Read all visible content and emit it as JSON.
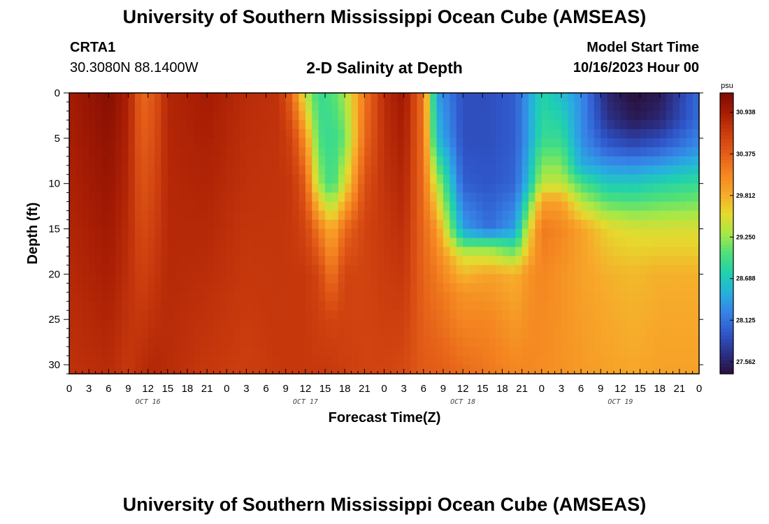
{
  "header": {
    "title": "University of Southern Mississippi Ocean Cube (AMSEAS)",
    "station": "CRTA1",
    "coords": "30.3080N  88.1400W",
    "subtitle": "2-D Salinity at Depth",
    "start_label": "Model Start Time",
    "start_value": "10/16/2023 Hour 00"
  },
  "footer": {
    "title": "University of Southern Mississippi Ocean Cube (AMSEAS)"
  },
  "chart_data": {
    "type": "heatmap",
    "title": "2-D Salinity at Depth",
    "xlabel": "Forecast Time(Z)",
    "ylabel": "Depth (ft)",
    "xlim": [
      0,
      96
    ],
    "ylim": [
      31,
      0
    ],
    "x_tick_labels": [
      "0",
      "3",
      "6",
      "9",
      "12",
      "15",
      "18",
      "21",
      "0",
      "3",
      "6",
      "9",
      "12",
      "15",
      "18",
      "21",
      "0",
      "3",
      "6",
      "9",
      "12",
      "15",
      "18",
      "21",
      "0",
      "3",
      "6",
      "9",
      "12",
      "15",
      "18",
      "21",
      "0"
    ],
    "y_ticks": [
      0,
      5,
      10,
      15,
      20,
      25,
      30
    ],
    "day_labels": [
      {
        "label": "OCT 16",
        "hour": 12
      },
      {
        "label": "OCT 17",
        "hour": 36
      },
      {
        "label": "OCT 18",
        "hour": 60
      },
      {
        "label": "OCT 19",
        "hour": 84
      }
    ],
    "colorbar": {
      "unit": "psu",
      "min": 27.4,
      "max": 31.2,
      "tick_labels": [
        "30.938",
        "30.375",
        "29.812",
        "29.250",
        "28.688",
        "28.125",
        "27.562"
      ],
      "colors": [
        "#2a0f3a",
        "#2b2f85",
        "#2f55c8",
        "#3780e6",
        "#28aee0",
        "#1fd0b0",
        "#4de07a",
        "#a8e846",
        "#e6d92e",
        "#f7a82a",
        "#f48420",
        "#e35d18",
        "#cc3d0e",
        "#a81d04",
        "#7f0c02"
      ]
    },
    "profiles": [
      {
        "hour": 0,
        "depths": [
          0,
          31
        ],
        "values": [
          30.95,
          30.75
        ]
      },
      {
        "hour": 6,
        "depths": [
          0,
          31
        ],
        "values": [
          31.15,
          30.8
        ]
      },
      {
        "hour": 9,
        "depths": [
          0,
          31
        ],
        "values": [
          30.9,
          30.7
        ]
      },
      {
        "hour": 11,
        "depths": [
          0,
          31
        ],
        "values": [
          30.3,
          30.8
        ]
      },
      {
        "hour": 13,
        "depths": [
          0,
          31
        ],
        "values": [
          30.45,
          30.85
        ]
      },
      {
        "hour": 15,
        "depths": [
          0,
          31
        ],
        "values": [
          30.85,
          30.8
        ]
      },
      {
        "hour": 21,
        "depths": [
          0,
          31
        ],
        "values": [
          30.95,
          30.7
        ]
      },
      {
        "hour": 27,
        "depths": [
          0,
          31
        ],
        "values": [
          30.8,
          30.65
        ]
      },
      {
        "hour": 32,
        "depths": [
          0,
          31
        ],
        "values": [
          30.75,
          30.7
        ]
      },
      {
        "hour": 34,
        "depths": [
          0,
          5,
          10,
          15,
          20,
          31
        ],
        "values": [
          30.3,
          30.6,
          30.7,
          30.7,
          30.7,
          30.7
        ]
      },
      {
        "hour": 36,
        "depths": [
          0,
          5,
          10,
          15,
          20,
          31
        ],
        "values": [
          29.4,
          30.0,
          30.4,
          30.6,
          30.7,
          30.7
        ]
      },
      {
        "hour": 38,
        "depths": [
          0,
          5,
          10,
          15,
          20,
          31
        ],
        "values": [
          28.9,
          29.0,
          29.3,
          30.2,
          30.6,
          30.7
        ]
      },
      {
        "hour": 40,
        "depths": [
          0,
          5,
          10,
          15,
          20,
          25,
          31
        ],
        "values": [
          29.0,
          28.9,
          28.9,
          29.8,
          30.2,
          30.6,
          30.7
        ]
      },
      {
        "hour": 42,
        "depths": [
          0,
          5,
          10,
          15,
          20,
          31
        ],
        "values": [
          29.3,
          29.1,
          29.5,
          30.3,
          30.6,
          30.65
        ]
      },
      {
        "hour": 45,
        "depths": [
          0,
          5,
          10,
          15,
          20,
          31
        ],
        "values": [
          30.2,
          30.3,
          30.5,
          30.6,
          30.6,
          30.6
        ]
      },
      {
        "hour": 48,
        "depths": [
          0,
          31
        ],
        "values": [
          30.8,
          30.6
        ]
      },
      {
        "hour": 51,
        "depths": [
          0,
          31
        ],
        "values": [
          31.0,
          30.55
        ]
      },
      {
        "hour": 54,
        "depths": [
          0,
          31
        ],
        "values": [
          30.2,
          30.4
        ]
      },
      {
        "hour": 56,
        "depths": [
          0,
          5,
          10,
          15,
          20,
          31
        ],
        "values": [
          28.4,
          28.6,
          29.4,
          30.0,
          30.2,
          30.4
        ]
      },
      {
        "hour": 60,
        "depths": [
          0,
          5,
          10,
          15,
          18,
          22,
          31
        ],
        "values": [
          27.9,
          27.9,
          28.0,
          28.4,
          29.5,
          30.0,
          30.3
        ]
      },
      {
        "hour": 64,
        "depths": [
          0,
          5,
          10,
          15,
          17,
          20,
          25,
          31
        ],
        "values": [
          27.9,
          27.9,
          27.95,
          28.1,
          29.2,
          29.9,
          30.1,
          30.2
        ]
      },
      {
        "hour": 68,
        "depths": [
          0,
          5,
          10,
          15,
          20,
          31
        ],
        "values": [
          28.0,
          28.0,
          28.05,
          28.4,
          29.8,
          30.1
        ]
      },
      {
        "hour": 70,
        "depths": [
          0,
          5,
          10,
          15,
          20,
          31
        ],
        "values": [
          28.4,
          28.4,
          28.6,
          29.5,
          30.0,
          30.1
        ]
      },
      {
        "hour": 72,
        "depths": [
          0,
          5,
          10,
          12,
          15,
          20,
          31
        ],
        "values": [
          28.8,
          28.9,
          29.4,
          29.9,
          30.2,
          30.1,
          30.05
        ]
      },
      {
        "hour": 75,
        "depths": [
          0,
          5,
          10,
          12,
          15,
          20,
          31
        ],
        "values": [
          28.6,
          28.9,
          29.4,
          29.9,
          30.1,
          30.0,
          30.0
        ]
      },
      {
        "hour": 78,
        "depths": [
          0,
          5,
          8,
          10,
          15,
          20,
          31
        ],
        "values": [
          28.3,
          28.3,
          28.5,
          29.0,
          29.9,
          29.9,
          29.95
        ]
      },
      {
        "hour": 82,
        "depths": [
          0,
          3,
          6,
          10,
          15,
          20,
          31
        ],
        "values": [
          27.6,
          27.7,
          28.0,
          28.7,
          29.6,
          29.8,
          29.9
        ]
      },
      {
        "hour": 86,
        "depths": [
          0,
          3,
          6,
          10,
          15,
          20,
          31
        ],
        "values": [
          27.4,
          27.5,
          27.9,
          28.7,
          29.5,
          29.75,
          29.85
        ]
      },
      {
        "hour": 90,
        "depths": [
          0,
          3,
          6,
          10,
          15,
          20,
          31
        ],
        "values": [
          27.5,
          27.6,
          28.0,
          28.8,
          29.5,
          29.8,
          29.9
        ]
      },
      {
        "hour": 96,
        "depths": [
          0,
          3,
          6,
          10,
          15,
          20,
          31
        ],
        "values": [
          28.1,
          28.1,
          28.3,
          28.9,
          29.5,
          29.8,
          29.9
        ]
      }
    ]
  }
}
